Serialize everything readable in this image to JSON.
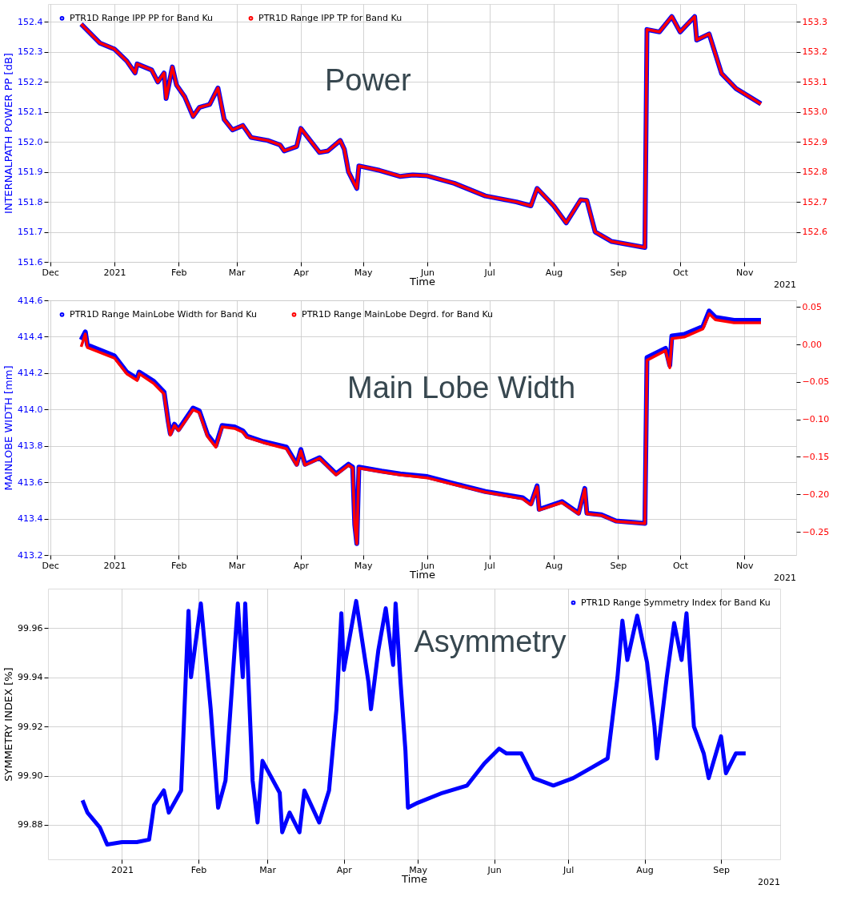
{
  "chart_data": [
    {
      "type": "line",
      "xlabel": "Time",
      "ylabel": "INTERNALPATH POWER PP [dB]",
      "annotations": [
        "Power",
        "2021"
      ],
      "legend": "top left",
      "grid": true,
      "xlim": [
        "2020-11-30",
        "2021-11-26"
      ],
      "xticks": [
        {
          "value": "2020-12-01",
          "label": "Dec"
        },
        {
          "value": "2021-01-01",
          "label": "2021"
        },
        {
          "value": "2021-02-01",
          "label": "Feb"
        },
        {
          "value": "2021-03-01",
          "label": "Mar"
        },
        {
          "value": "2021-04-01",
          "label": "Apr"
        },
        {
          "value": "2021-05-01",
          "label": "May"
        },
        {
          "value": "2021-06-01",
          "label": "Jun"
        },
        {
          "value": "2021-07-01",
          "label": "Jul"
        },
        {
          "value": "2021-08-01",
          "label": "Aug"
        },
        {
          "value": "2021-09-01",
          "label": "Sep"
        },
        {
          "value": "2021-10-01",
          "label": "Oct"
        },
        {
          "value": "2021-11-01",
          "label": "Nov"
        }
      ],
      "ylim": [
        151.6,
        152.46
      ],
      "yticks": [
        151.6,
        151.7,
        151.8,
        151.9,
        {
          "value": 152,
          "label": "152.0"
        },
        152.1,
        152.2,
        152.3,
        152.4
      ],
      "y2lim": [
        152.5,
        153.36
      ],
      "y2ticks": [
        152.6,
        152.7,
        152.8,
        152.9,
        {
          "value": 153,
          "label": "153.0"
        },
        153.1,
        153.2,
        153.3
      ],
      "x": [
        "2020-12-16",
        "2020-12-25",
        "2021-01-01",
        "2021-01-07",
        "2021-01-11",
        "2021-01-12",
        "2021-01-19",
        "2021-01-22",
        "2021-01-25",
        "2021-01-26",
        "2021-01-29",
        "2021-01-31",
        "2021-02-04",
        "2021-02-08",
        "2021-02-11",
        "2021-02-16",
        "2021-02-20",
        "2021-02-23",
        "2021-02-27",
        "2021-03-04",
        "2021-03-08",
        "2021-03-16",
        "2021-03-22",
        "2021-03-24",
        "2021-03-30",
        "2021-04-01",
        "2021-04-10",
        "2021-04-14",
        "2021-04-20",
        "2021-04-22",
        "2021-04-24",
        "2021-04-28",
        "2021-04-29",
        "2021-05-09",
        "2021-05-19",
        "2021-05-25",
        "2021-06-01",
        "2021-06-14",
        "2021-06-29",
        "2021-07-14",
        "2021-07-21",
        "2021-07-24",
        "2021-08-01",
        "2021-08-07",
        "2021-08-14",
        "2021-08-17",
        "2021-08-21",
        "2021-08-29",
        "2021-09-14",
        "2021-09-15",
        "2021-09-21",
        "2021-09-27",
        "2021-10-01",
        "2021-10-08",
        "2021-10-09",
        "2021-10-15",
        "2021-10-21",
        "2021-10-28",
        "2021-11-09"
      ],
      "series": [
        {
          "name": "PTR1D Range IPP PP for Band Ku",
          "color": "#0000ff",
          "values": [
            152.393,
            152.33,
            152.31,
            152.27,
            152.23,
            152.26,
            152.24,
            152.2,
            152.23,
            152.145,
            152.25,
            152.19,
            152.15,
            152.085,
            152.115,
            152.125,
            152.18,
            152.075,
            152.04,
            152.055,
            152.015,
            152.005,
            151.99,
            151.97,
            151.985,
            152.045,
            151.965,
            151.97,
            152.005,
            151.975,
            151.9,
            151.845,
            151.92,
            151.905,
            151.885,
            151.89,
            151.887,
            151.862,
            151.82,
            151.8,
            151.787,
            151.845,
            151.787,
            151.73,
            151.807,
            151.805,
            151.7,
            151.668,
            151.648,
            152.375,
            152.367,
            152.418,
            152.367,
            152.418,
            152.34,
            152.36,
            152.228,
            152.178,
            152.127
          ]
        },
        {
          "name": "PTR1D Range IPP TP for Band Ku",
          "color": "#ff0000",
          "axis": "y2",
          "values": [
            153.293,
            153.23,
            153.21,
            153.17,
            153.13,
            153.16,
            153.14,
            153.1,
            153.13,
            153.045,
            153.15,
            153.09,
            153.05,
            152.985,
            153.015,
            153.025,
            153.08,
            152.975,
            152.94,
            152.955,
            152.915,
            152.905,
            152.89,
            152.87,
            152.885,
            152.945,
            152.865,
            152.87,
            152.905,
            152.875,
            152.8,
            152.745,
            152.82,
            152.805,
            152.785,
            152.79,
            152.787,
            152.762,
            152.72,
            152.7,
            152.687,
            152.745,
            152.687,
            152.63,
            152.707,
            152.705,
            152.6,
            152.568,
            152.548,
            153.275,
            153.267,
            153.318,
            153.267,
            153.318,
            153.24,
            153.26,
            153.128,
            153.078,
            153.027
          ]
        }
      ]
    },
    {
      "type": "line",
      "xlabel": "Time",
      "ylabel": "MAINLOBE WIDTH [mm]",
      "annotations": [
        "Main Lobe Width",
        "2021"
      ],
      "legend": "top left",
      "grid": true,
      "xlim": [
        "2020-11-30",
        "2021-11-26"
      ],
      "xticks": [
        {
          "value": "2020-12-01",
          "label": "Dec"
        },
        {
          "value": "2021-01-01",
          "label": "2021"
        },
        {
          "value": "2021-02-01",
          "label": "Feb"
        },
        {
          "value": "2021-03-01",
          "label": "Mar"
        },
        {
          "value": "2021-04-01",
          "label": "Apr"
        },
        {
          "value": "2021-05-01",
          "label": "May"
        },
        {
          "value": "2021-06-01",
          "label": "Jun"
        },
        {
          "value": "2021-07-01",
          "label": "Jul"
        },
        {
          "value": "2021-08-01",
          "label": "Aug"
        },
        {
          "value": "2021-09-01",
          "label": "Sep"
        },
        {
          "value": "2021-10-01",
          "label": "Oct"
        },
        {
          "value": "2021-11-01",
          "label": "Nov"
        }
      ],
      "ylim": [
        413.2,
        414.6
      ],
      "yticks": [
        413.2,
        413.4,
        413.6,
        413.8,
        {
          "value": 414,
          "label": "414.0"
        },
        414.2,
        414.4,
        414.6
      ],
      "y2lim": [
        -0.281,
        0.059
      ],
      "y2ticks": [
        {
          "value": -0.25,
          "label": "−0.25"
        },
        {
          "value": -0.2,
          "label": "−0.20"
        },
        {
          "value": -0.15,
          "label": "−0.15"
        },
        {
          "value": -0.1,
          "label": "−0.10"
        },
        {
          "value": -0.05,
          "label": "−0.05"
        },
        {
          "value": 0,
          "label": "0.00"
        },
        {
          "value": 0.05,
          "label": "0.05"
        }
      ],
      "x": [
        "2020-12-16",
        "2020-12-18",
        "2020-12-19",
        "2021-01-01",
        "2021-01-07",
        "2021-01-12",
        "2021-01-13",
        "2021-01-20",
        "2021-01-25",
        "2021-01-27",
        "2021-01-28",
        "2021-01-30",
        "2021-02-01",
        "2021-02-08",
        "2021-02-11",
        "2021-02-15",
        "2021-02-19",
        "2021-02-22",
        "2021-02-28",
        "2021-03-04",
        "2021-03-06",
        "2021-03-14",
        "2021-03-25",
        "2021-03-30",
        "2021-04-01",
        "2021-04-03",
        "2021-04-10",
        "2021-04-18",
        "2021-04-24",
        "2021-04-26",
        "2021-04-27",
        "2021-04-28",
        "2021-04-29",
        "2021-05-10",
        "2021-05-19",
        "2021-06-01",
        "2021-06-14",
        "2021-06-29",
        "2021-07-17",
        "2021-07-21",
        "2021-07-24",
        "2021-07-25",
        "2021-08-05",
        "2021-08-13",
        "2021-08-16",
        "2021-08-17",
        "2021-08-24",
        "2021-08-31",
        "2021-09-14",
        "2021-09-15",
        "2021-09-24",
        "2021-09-26",
        "2021-09-27",
        "2021-10-03",
        "2021-10-12",
        "2021-10-15",
        "2021-10-18",
        "2021-10-27",
        "2021-11-09"
      ],
      "series": [
        {
          "name": "PTR1D Range MainLobe Width for Band Ku",
          "color": "#0000ff",
          "values": [
            414.383,
            414.427,
            414.354,
            414.295,
            414.206,
            414.17,
            414.206,
            414.155,
            414.096,
            413.934,
            413.867,
            413.919,
            413.89,
            414.008,
            413.993,
            413.861,
            413.802,
            413.912,
            413.905,
            413.883,
            413.853,
            413.823,
            413.794,
            413.699,
            413.78,
            413.699,
            413.735,
            413.646,
            413.699,
            413.683,
            413.367,
            413.263,
            413.683,
            413.661,
            413.646,
            413.631,
            413.592,
            413.549,
            413.515,
            413.481,
            413.58,
            413.451,
            413.494,
            413.43,
            413.566,
            413.43,
            413.421,
            413.387,
            413.374,
            414.285,
            414.336,
            414.242,
            414.404,
            414.413,
            414.456,
            414.541,
            414.507,
            414.49,
            414.49
          ]
        },
        {
          "name": "PTR1D Range MainLobe Degrd. for Band Ku",
          "color": "#ff0000",
          "axis": "y2",
          "values": [
            -0.003,
            0.014,
            -0.004,
            -0.018,
            -0.039,
            -0.048,
            -0.039,
            -0.052,
            -0.066,
            -0.105,
            -0.121,
            -0.108,
            -0.115,
            -0.087,
            -0.091,
            -0.123,
            -0.137,
            -0.11,
            -0.112,
            -0.117,
            -0.124,
            -0.131,
            -0.139,
            -0.161,
            -0.142,
            -0.161,
            -0.152,
            -0.174,
            -0.161,
            -0.165,
            -0.241,
            -0.266,
            -0.165,
            -0.17,
            -0.174,
            -0.178,
            -0.187,
            -0.197,
            -0.206,
            -0.214,
            -0.19,
            -0.221,
            -0.211,
            -0.226,
            -0.193,
            -0.226,
            -0.228,
            -0.236,
            -0.239,
            -0.021,
            -0.008,
            -0.031,
            0.008,
            0.01,
            0.021,
            0.041,
            0.033,
            0.029,
            0.029
          ]
        }
      ]
    },
    {
      "type": "line",
      "xlabel": "Time",
      "ylabel": "SYMMETRY INDEX [%]",
      "annotations": [
        "Asymmetry",
        "2021"
      ],
      "legend": "top right",
      "grid": true,
      "xlim": [
        "2020-12-02",
        "2021-09-25"
      ],
      "xticks": [
        {
          "value": "2021-01-01",
          "label": "2021"
        },
        {
          "value": "2021-02-01",
          "label": "Feb"
        },
        {
          "value": "2021-03-01",
          "label": "Mar"
        },
        {
          "value": "2021-04-01",
          "label": "Apr"
        },
        {
          "value": "2021-05-01",
          "label": "May"
        },
        {
          "value": "2021-06-01",
          "label": "Jun"
        },
        {
          "value": "2021-07-01",
          "label": "Jul"
        },
        {
          "value": "2021-08-01",
          "label": "Aug"
        },
        {
          "value": "2021-09-01",
          "label": "Sep"
        }
      ],
      "ylim": [
        99.866,
        99.976
      ],
      "yticks": [
        99.88,
        {
          "value": 99.9,
          "label": "99.90"
        },
        99.92,
        99.94,
        99.96
      ],
      "x": [
        "2020-12-16",
        "2020-12-18",
        "2020-12-23",
        "2020-12-26",
        "2021-01-01",
        "2021-01-07",
        "2021-01-12",
        "2021-01-14",
        "2021-01-18",
        "2021-01-20",
        "2021-01-25",
        "2021-01-28",
        "2021-01-29",
        "2021-02-02",
        "2021-02-06",
        "2021-02-09",
        "2021-02-12",
        "2021-02-17",
        "2021-02-19",
        "2021-02-20",
        "2021-02-23",
        "2021-02-25",
        "2021-02-27",
        "2021-03-06",
        "2021-03-07",
        "2021-03-10",
        "2021-03-14",
        "2021-03-16",
        "2021-03-22",
        "2021-03-26",
        "2021-03-29",
        "2021-03-31",
        "2021-04-01",
        "2021-04-06",
        "2021-04-11",
        "2021-04-12",
        "2021-04-15",
        "2021-04-18",
        "2021-04-21",
        "2021-04-22",
        "2021-04-24",
        "2021-04-26",
        "2021-04-27",
        "2021-05-01",
        "2021-05-11",
        "2021-05-21",
        "2021-05-28",
        "2021-06-03",
        "2021-06-06",
        "2021-06-12",
        "2021-06-17",
        "2021-06-25",
        "2021-07-03",
        "2021-07-10",
        "2021-07-17",
        "2021-07-21",
        "2021-07-23",
        "2021-07-25",
        "2021-07-29",
        "2021-08-02",
        "2021-08-05",
        "2021-08-06",
        "2021-08-10",
        "2021-08-13",
        "2021-08-16",
        "2021-08-18",
        "2021-08-21",
        "2021-08-25",
        "2021-08-27",
        "2021-09-01",
        "2021-09-03",
        "2021-09-07",
        "2021-09-11"
      ],
      "series": [
        {
          "name": "PTR1D Range Symmetry Index for Band Ku",
          "color": "#0000ff",
          "values": [
            99.89,
            99.885,
            99.879,
            99.872,
            99.873,
            99.873,
            99.874,
            99.888,
            99.894,
            99.885,
            99.894,
            99.967,
            99.94,
            99.97,
            99.927,
            99.887,
            99.898,
            99.97,
            99.94,
            99.97,
            99.898,
            99.881,
            99.906,
            99.893,
            99.877,
            99.885,
            99.877,
            99.894,
            99.881,
            99.894,
            99.927,
            99.966,
            99.943,
            99.971,
            99.938,
            99.927,
            99.951,
            99.968,
            99.945,
            99.97,
            99.938,
            99.91,
            99.887,
            99.889,
            99.893,
            99.896,
            99.905,
            99.911,
            99.909,
            99.909,
            99.899,
            99.896,
            99.899,
            99.903,
            99.907,
            99.94,
            99.963,
            99.947,
            99.965,
            99.946,
            99.92,
            99.907,
            99.94,
            99.962,
            99.947,
            99.966,
            99.92,
            99.909,
            99.899,
            99.916,
            99.901,
            99.909,
            99.909
          ]
        }
      ]
    }
  ]
}
